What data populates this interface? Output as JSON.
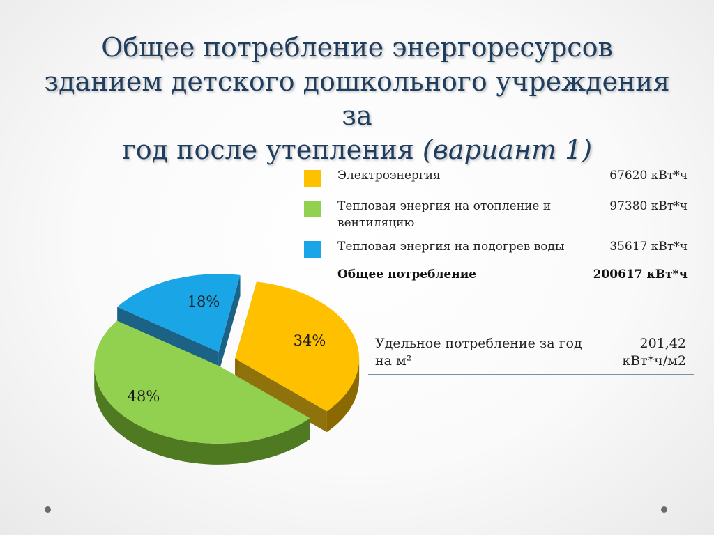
{
  "title": {
    "line1": "Общее потребление энергоресурсов",
    "line2": "зданием детского дошкольного учреждения за",
    "line3_main": "год после утепления ",
    "line3_italic": "(вариант 1)"
  },
  "legend": {
    "rows": [
      {
        "label": "Электроэнергия",
        "value": "67620 кВт*ч",
        "color": "#ffc000"
      },
      {
        "label": "Тепловая энергия на отопление и вентиляцию",
        "value": "97380 кВт*ч",
        "color": "#92d050"
      },
      {
        "label": "Тепловая энергия на подогрев воды",
        "value": "35617 кВт*ч",
        "color": "#1aa6e6"
      }
    ],
    "total": {
      "label": "Общее потребление",
      "value": "200617 кВт*ч"
    }
  },
  "specific": {
    "label": "Удельное потребление за год на м²",
    "value_line1": "201,42",
    "value_line2": "кВт*ч/м2"
  },
  "chart_data": {
    "type": "pie",
    "categories": [
      "Электроэнергия",
      "Тепловая энергия на отопление и вентиляцию",
      "Тепловая энергия на подогрев воды"
    ],
    "values": [
      34,
      48,
      18
    ],
    "labels": [
      "34%",
      "48%",
      "18%"
    ],
    "colors": [
      "#ffc000",
      "#92d050",
      "#1aa6e6"
    ],
    "side_colors": [
      "#8a6a00",
      "#4f7a22",
      "#0f5a80"
    ]
  }
}
